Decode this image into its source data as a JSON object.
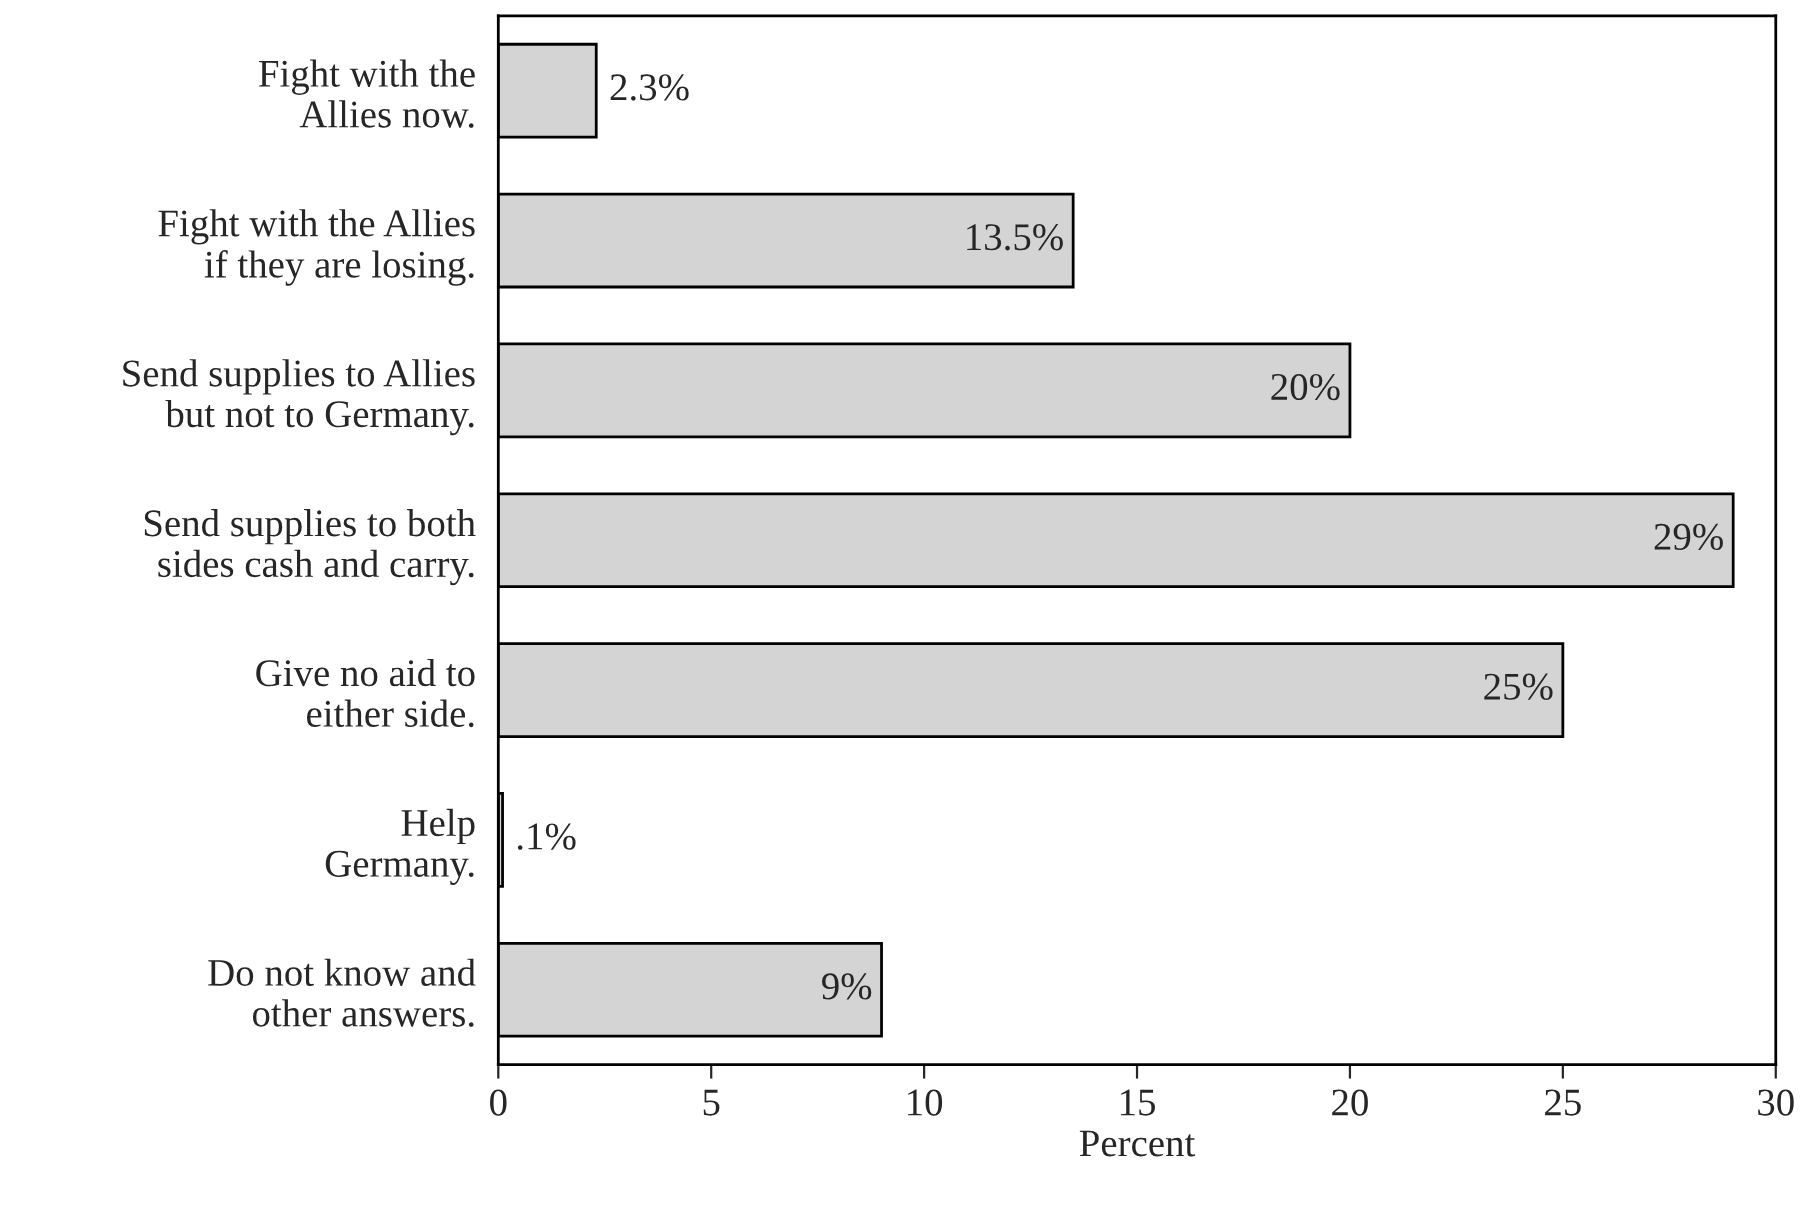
{
  "chart_data": {
    "type": "bar",
    "orientation": "horizontal",
    "xlabel": "Percent",
    "categories": [
      "Fight with the\nAllies now.",
      "Fight with the Allies\nif they are losing.",
      "Send supplies to Allies\nbut not to Germany.",
      "Send supplies to both\nsides cash and carry.",
      "Give no aid to\neither side.",
      "Help\nGermany.",
      "Do not know and\nother answers."
    ],
    "values": [
      2.3,
      13.5,
      20,
      29,
      25,
      0.1,
      9
    ],
    "value_labels": [
      "2.3%",
      "13.5%",
      "20%",
      "29%",
      "25%",
      ".1%",
      "9%"
    ],
    "color": "#d4d4d4",
    "xlim": [
      0,
      30
    ],
    "xticks": [
      0,
      5,
      10,
      15,
      20,
      25,
      30
    ],
    "grid": false,
    "legend": false
  }
}
